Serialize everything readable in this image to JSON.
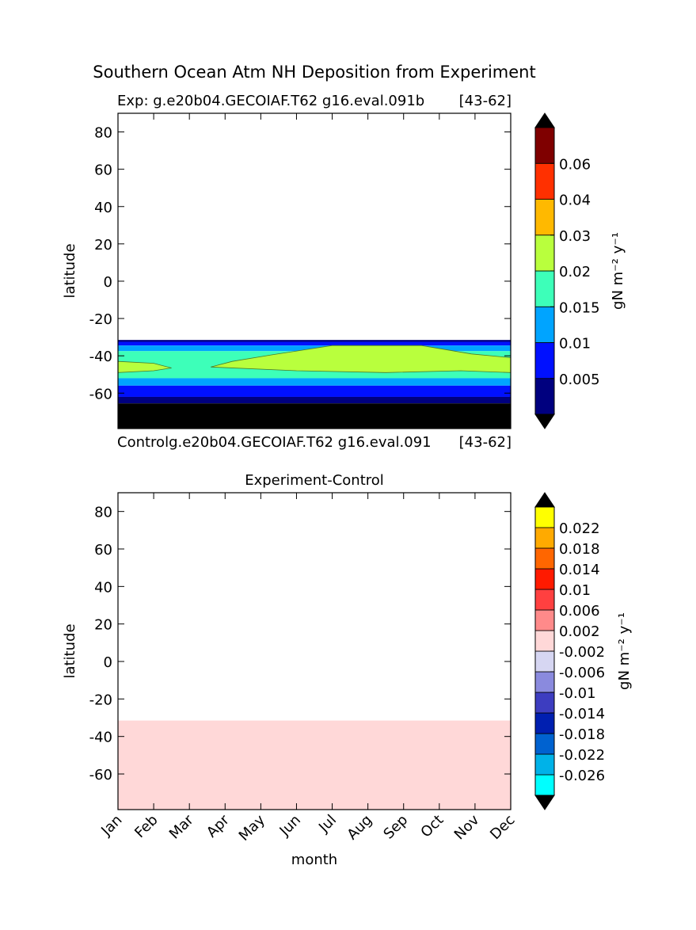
{
  "figure": {
    "title": "Southern Ocean Atm NH Deposition from Experiment"
  },
  "chart_data": [
    {
      "type": "heatmap",
      "name": "experiment",
      "subtitle_left": "Exp:    g.e20b04.GECOIAF.T62 g16.eval.091b",
      "subtitle_right": "[43-62]",
      "xlabel": "",
      "ylabel": "latitude",
      "xlim": [
        0,
        11
      ],
      "ylim": [
        -79,
        90
      ],
      "yticks": [
        80,
        60,
        40,
        20,
        0,
        -20,
        -40,
        -60
      ],
      "colorbar": {
        "label": "gN m⁻² y⁻¹",
        "levels": [
          "0.005",
          "0.01",
          "0.015",
          "0.02",
          "0.03",
          "0.04",
          "0.06"
        ],
        "colors": [
          "#00007f",
          "#0010ff",
          "#00a4ff",
          "#3dffb9",
          "#b9ff3d",
          "#ffb900",
          "#ff3000",
          "#7f0000"
        ],
        "extend_colors": [
          "#000000",
          "#000000"
        ]
      },
      "bands": [
        {
          "lat_top": -31.5,
          "lat_bottom": -32.5,
          "color": "#00007f"
        },
        {
          "lat_top": -32.5,
          "lat_bottom": -34.5,
          "color": "#0010ff"
        },
        {
          "lat_top": -34.5,
          "lat_bottom": -37.5,
          "color": "#00a4ff"
        },
        {
          "lat_top": -37.5,
          "lat_bottom": -52.0,
          "color": "#3dffb9"
        },
        {
          "lat_top": -52.0,
          "lat_bottom": -56.0,
          "color": "#00a4ff"
        },
        {
          "lat_top": -56.0,
          "lat_bottom": -62.0,
          "color": "#0010ff"
        },
        {
          "lat_top": -62.0,
          "lat_bottom": -65.5,
          "color": "#00007f"
        },
        {
          "lat_top": -65.5,
          "lat_bottom": -79.0,
          "color": "#000000"
        }
      ],
      "contour_blobs": [
        {
          "color": "#b9ff3d",
          "points": [
            [
              0,
              -43
            ],
            [
              1,
              -44
            ],
            [
              1.5,
              -46.5
            ],
            [
              1,
              -48
            ],
            [
              0,
              -49
            ]
          ]
        },
        {
          "color": "#b9ff3d",
          "points": [
            [
              2.6,
              -46
            ],
            [
              3.2,
              -43
            ],
            [
              4.3,
              -39.5
            ],
            [
              6,
              -34.5
            ],
            [
              8.5,
              -34.5
            ],
            [
              9.9,
              -39
            ],
            [
              11,
              -41
            ],
            [
              11,
              -49
            ],
            [
              9.6,
              -48
            ],
            [
              7.5,
              -49
            ],
            [
              5,
              -48
            ],
            [
              2.6,
              -46
            ]
          ]
        }
      ]
    },
    {
      "type": "heatmap",
      "name": "difference",
      "subtitle_left": "Controlg.e20b04.GECOIAF.T62 g16.eval.091",
      "subtitle_right": "[43-62]",
      "title": "Experiment-Control",
      "xlabel": "month",
      "ylabel": "latitude",
      "xticks": [
        "Jan",
        "Feb",
        "Mar",
        "Apr",
        "May",
        "Jun",
        "Jul",
        "Aug",
        "Sep",
        "Oct",
        "Nov",
        "Dec"
      ],
      "xlim": [
        0,
        11
      ],
      "ylim": [
        -79,
        90
      ],
      "yticks": [
        80,
        60,
        40,
        20,
        0,
        -20,
        -40,
        -60
      ],
      "colorbar": {
        "label": "gN m⁻² y⁻¹",
        "levels": [
          "-0.026",
          "-0.022",
          "-0.018",
          "-0.014",
          "-0.01",
          "-0.006",
          "-0.002",
          "0.002",
          "0.006",
          "0.01",
          "0.014",
          "0.018",
          "0.022"
        ],
        "colors": [
          "#00ffff",
          "#00b2e8",
          "#0062d0",
          "#001fb0",
          "#3d3dc0",
          "#8a8ade",
          "#d6d6f2",
          "#ffd8d8",
          "#ff8a8a",
          "#ff4040",
          "#ff1a00",
          "#ff6600",
          "#ffaa00",
          "#ffff00"
        ],
        "extend_colors": [
          "#000000",
          "#000000"
        ]
      },
      "bands": [
        {
          "lat_top": -31.5,
          "lat_bottom": -79.0,
          "color": "#ffd8d8"
        }
      ],
      "contour_blobs": []
    }
  ]
}
